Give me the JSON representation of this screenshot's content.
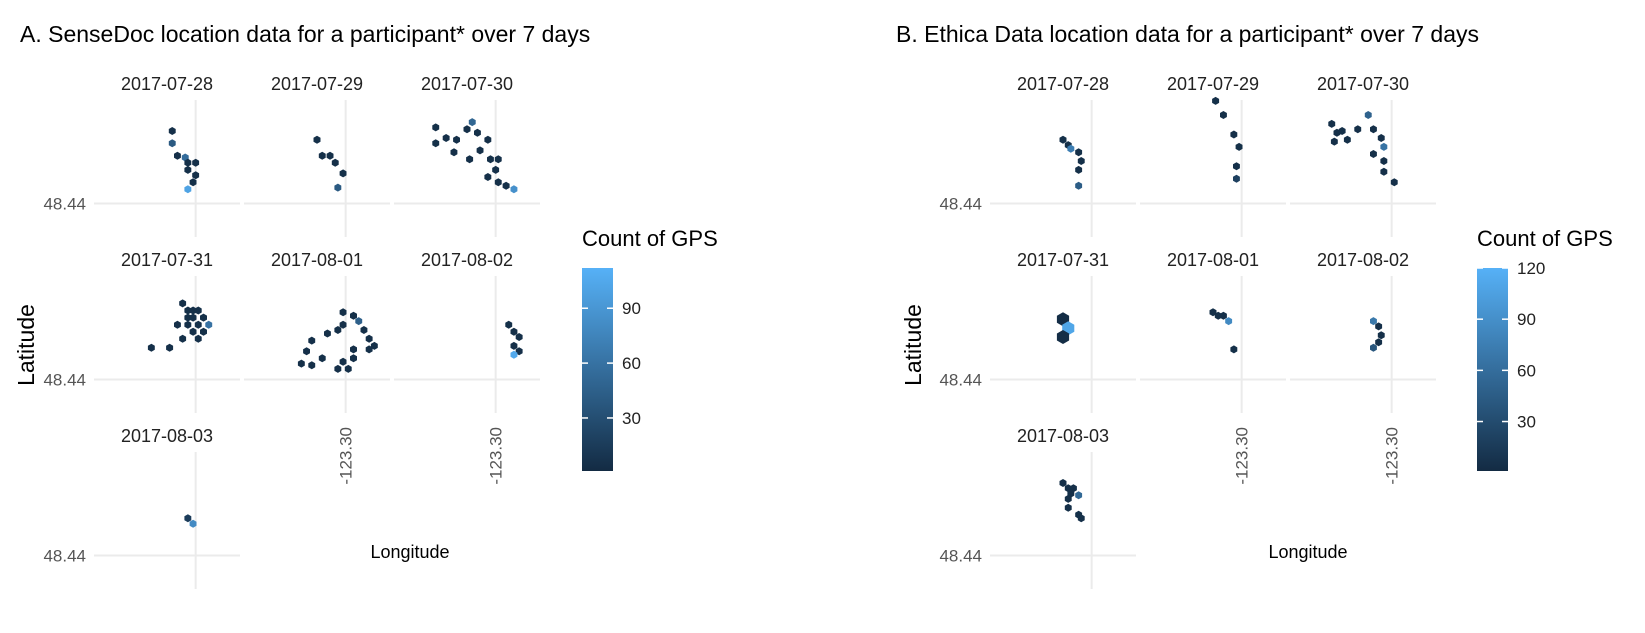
{
  "chart_data": [
    {
      "type": "hexbin",
      "title": "A. SenseDoc location data for a participant* over 7 days",
      "xlabel": "Longitude",
      "ylabel": "Latitude",
      "x_tick": "-123.30",
      "y_tick": "48.44",
      "legend": {
        "title": "Count of GPS",
        "ticks": [
          30,
          60,
          90
        ],
        "range": [
          1,
          112
        ],
        "position": "right"
      },
      "color_low": "#132B43",
      "color_high": "#56B1F7",
      "facets": [
        {
          "label": "2017-07-28",
          "points": [
            [
              -123.3045,
              48.481,
              5
            ],
            [
              -123.3045,
              48.474,
              40
            ],
            [
              -123.3035,
              48.467,
              5
            ],
            [
              -123.302,
              48.466,
              55
            ],
            [
              -123.3015,
              48.463,
              5
            ],
            [
              -123.3,
              48.463,
              5
            ],
            [
              -123.3015,
              48.459,
              5
            ],
            [
              -123.3,
              48.456,
              5
            ],
            [
              -123.3005,
              48.452,
              5
            ],
            [
              -123.3015,
              48.448,
              100
            ]
          ]
        },
        {
          "label": "2017-07-29",
          "points": [
            [
              -123.3055,
              48.476,
              5
            ],
            [
              -123.3045,
              48.467,
              5
            ],
            [
              -123.303,
              48.467,
              5
            ],
            [
              -123.302,
              48.463,
              5
            ],
            [
              -123.3005,
              48.457,
              5
            ],
            [
              -123.3015,
              48.449,
              40
            ]
          ]
        },
        {
          "label": "2017-07-30",
          "points": [
            [
              -123.3115,
              48.483,
              5
            ],
            [
              -123.3095,
              48.477,
              5
            ],
            [
              -123.3075,
              48.476,
              5
            ],
            [
              -123.3055,
              48.482,
              5
            ],
            [
              -123.3045,
              48.486,
              50
            ],
            [
              -123.3035,
              48.48,
              5
            ],
            [
              -123.3015,
              48.476,
              5
            ],
            [
              -123.303,
              48.47,
              5
            ],
            [
              -123.305,
              48.465,
              5
            ],
            [
              -123.308,
              48.469,
              5
            ],
            [
              -123.3115,
              48.474,
              5
            ],
            [
              -123.301,
              48.465,
              5
            ],
            [
              -123.2995,
              48.465,
              5
            ],
            [
              -123.3,
              48.459,
              5
            ],
            [
              -123.3015,
              48.455,
              5
            ],
            [
              -123.2995,
              48.452,
              5
            ],
            [
              -123.298,
              48.45,
              5
            ],
            [
              -123.2965,
              48.448,
              85
            ]
          ]
        },
        {
          "label": "2017-07-31",
          "points": [
            [
              -123.3025,
              48.483,
              5
            ],
            [
              -123.3015,
              48.479,
              5
            ],
            [
              -123.3005,
              48.479,
              5
            ],
            [
              -123.2995,
              48.479,
              5
            ],
            [
              -123.3015,
              48.475,
              5
            ],
            [
              -123.3005,
              48.475,
              5
            ],
            [
              -123.2985,
              48.475,
              5
            ],
            [
              -123.3035,
              48.471,
              5
            ],
            [
              -123.3015,
              48.471,
              5
            ],
            [
              -123.2995,
              48.471,
              5
            ],
            [
              -123.2975,
              48.471,
              60
            ],
            [
              -123.3005,
              48.467,
              5
            ],
            [
              -123.2985,
              48.467,
              5
            ],
            [
              -123.3025,
              48.463,
              5
            ],
            [
              -123.2995,
              48.463,
              5
            ],
            [
              -123.305,
              48.458,
              5
            ],
            [
              -123.3085,
              48.458,
              5
            ]
          ]
        },
        {
          "label": "2017-08-01",
          "points": [
            [
              -123.3005,
              48.478,
              5
            ],
            [
              -123.2985,
              48.476,
              5
            ],
            [
              -123.2975,
              48.473,
              45
            ],
            [
              -123.3005,
              48.471,
              5
            ],
            [
              -123.3015,
              48.468,
              5
            ],
            [
              -123.2965,
              48.468,
              5
            ],
            [
              -123.3035,
              48.466,
              5
            ],
            [
              -123.2955,
              48.463,
              5
            ],
            [
              -123.3065,
              48.462,
              5
            ],
            [
              -123.2945,
              48.459,
              5
            ],
            [
              -123.2955,
              48.457,
              5
            ],
            [
              -123.2985,
              48.457,
              5
            ],
            [
              -123.3075,
              48.456,
              5
            ],
            [
              -123.2985,
              48.452,
              5
            ],
            [
              -123.3045,
              48.452,
              5
            ],
            [
              -123.3085,
              48.449,
              5
            ],
            [
              -123.3065,
              48.448,
              5
            ],
            [
              -123.3005,
              48.45,
              5
            ],
            [
              -123.2995,
              48.446,
              5
            ],
            [
              -123.3015,
              48.446,
              5
            ]
          ]
        },
        {
          "label": "2017-08-02",
          "points": [
            [
              -123.2975,
              48.471,
              5
            ],
            [
              -123.2965,
              48.467,
              5
            ],
            [
              -123.2955,
              48.464,
              5
            ],
            [
              -123.2965,
              48.459,
              5
            ],
            [
              -123.2955,
              48.456,
              5
            ],
            [
              -123.2965,
              48.454,
              105
            ]
          ]
        },
        {
          "label": "2017-08-03",
          "points": [
            [
              -123.3015,
              48.461,
              15
            ],
            [
              -123.3005,
              48.458,
              80
            ]
          ]
        }
      ]
    },
    {
      "type": "hexbin",
      "title": "B. Ethica Data location data for a participant* over 7 days",
      "xlabel": "Longitude",
      "ylabel": "Latitude",
      "x_tick": "-123.30",
      "y_tick": "48.44",
      "legend": {
        "title": "Count of GPS",
        "ticks": [
          30,
          60,
          90,
          120
        ],
        "range": [
          1,
          120
        ],
        "position": "right"
      },
      "color_low": "#132B43",
      "color_high": "#56B1F7",
      "facets": [
        {
          "label": "2017-07-28",
          "points": [
            [
              -123.3055,
              48.476,
              5
            ],
            [
              -123.3045,
              48.473,
              5
            ],
            [
              -123.304,
              48.471,
              75
            ],
            [
              -123.3025,
              48.469,
              5
            ],
            [
              -123.302,
              48.464,
              5
            ],
            [
              -123.3025,
              48.459,
              5
            ],
            [
              -123.3025,
              48.45,
              45
            ]
          ]
        },
        {
          "label": "2017-07-29",
          "points": [
            [
              -123.305,
              48.498,
              5
            ],
            [
              -123.3035,
              48.49,
              5
            ],
            [
              -123.3015,
              48.479,
              5
            ],
            [
              -123.3005,
              48.472,
              5
            ],
            [
              -123.301,
              48.461,
              5
            ],
            [
              -123.301,
              48.454,
              20
            ]
          ]
        },
        {
          "label": "2017-07-30",
          "points": [
            [
              -123.3115,
              48.485,
              5
            ],
            [
              -123.3105,
              48.48,
              5
            ],
            [
              -123.311,
              48.475,
              5
            ],
            [
              -123.3095,
              48.481,
              5
            ],
            [
              -123.3085,
              48.476,
              5
            ],
            [
              -123.3065,
              48.482,
              5
            ],
            [
              -123.3045,
              48.49,
              50
            ],
            [
              -123.3035,
              48.482,
              5
            ],
            [
              -123.302,
              48.477,
              5
            ],
            [
              -123.3015,
              48.472,
              65
            ],
            [
              -123.3035,
              48.468,
              5
            ],
            [
              -123.3015,
              48.464,
              5
            ],
            [
              -123.3015,
              48.458,
              5
            ],
            [
              -123.2995,
              48.452,
              5
            ]
          ]
        },
        {
          "label": "2017-07-31",
          "points": [
            [
              -123.3055,
              48.474,
              3,
              7
            ],
            [
              -123.3045,
              48.469,
              110,
              7
            ],
            [
              -123.3055,
              48.464,
              3,
              7
            ]
          ]
        },
        {
          "label": "2017-08-01",
          "points": [
            [
              -123.3055,
              48.478,
              5
            ],
            [
              -123.3045,
              48.476,
              5
            ],
            [
              -123.3035,
              48.476,
              5
            ],
            [
              -123.3025,
              48.473,
              85
            ],
            [
              -123.3015,
              48.457,
              5
            ]
          ]
        },
        {
          "label": "2017-08-02",
          "points": [
            [
              -123.3035,
              48.473,
              70
            ],
            [
              -123.3025,
              48.47,
              5
            ],
            [
              -123.302,
              48.465,
              5
            ],
            [
              -123.3025,
              48.461,
              5
            ],
            [
              -123.3035,
              48.458,
              40
            ]
          ]
        },
        {
          "label": "2017-08-03",
          "points": [
            [
              -123.3055,
              48.481,
              5
            ],
            [
              -123.3045,
              48.478,
              5
            ],
            [
              -123.3035,
              48.478,
              5
            ],
            [
              -123.304,
              48.475,
              5
            ],
            [
              -123.3025,
              48.474,
              55
            ],
            [
              -123.3045,
              48.472,
              5
            ],
            [
              -123.3045,
              48.467,
              5
            ],
            [
              -123.3025,
              48.463,
              5
            ],
            [
              -123.302,
              48.461,
              5
            ]
          ]
        }
      ]
    }
  ]
}
